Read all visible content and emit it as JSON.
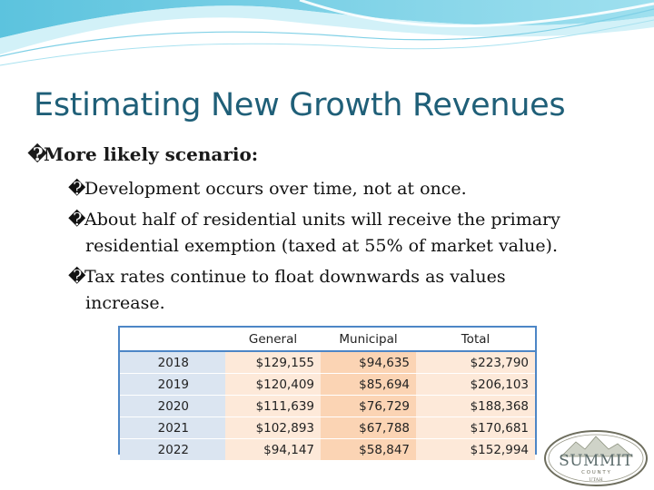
{
  "slide": {
    "title": "Estimating New Growth Revenues",
    "bullet_glyph": "�",
    "main_bullet": "More likely scenario:",
    "sub_bullets": [
      "Development occurs over time, not at once.",
      "About half of residential units will receive the primary",
      "residential exemption (taxed at 55% of market value).",
      "Tax rates continue to float downwards as values",
      "increase."
    ]
  },
  "table": {
    "headers": [
      "",
      "General",
      "Municipal",
      "Total"
    ],
    "rows": [
      [
        "2018",
        "$129,155",
        "$94,635",
        "$223,790"
      ],
      [
        "2019",
        "$120,409",
        "$85,694",
        "$206,103"
      ],
      [
        "2020",
        "$111,639",
        "$76,729",
        "$188,368"
      ],
      [
        "2021",
        "$102,893",
        "$67,788",
        "$170,681"
      ],
      [
        "2022",
        "$94,147",
        "$58,847",
        "$152,994"
      ]
    ]
  },
  "logo": {
    "name": "SUMMIT",
    "county": "C O U N T Y",
    "state": "UTAH"
  },
  "colors": {
    "title": "#1f5f78",
    "table_border": "#4d86c6",
    "year_fill": "#dbe5f1",
    "general_fill": "#fde9d9",
    "municipal_fill": "#fbd4b4"
  }
}
